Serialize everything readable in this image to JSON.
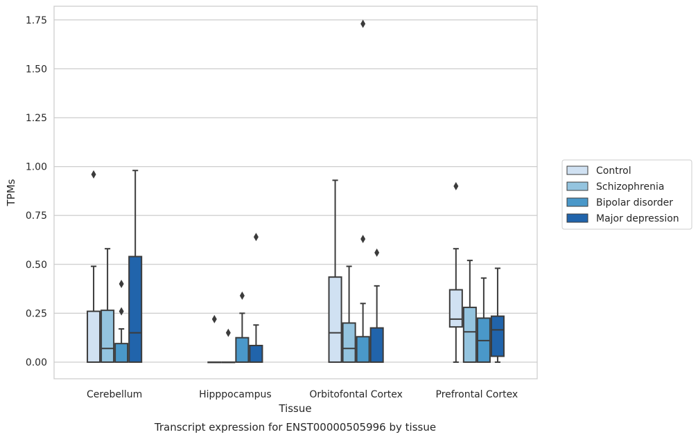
{
  "chart_data": {
    "type": "box",
    "caption": "Transcript expression for ENST00000505996 by tissue",
    "xlabel": "Tissue",
    "ylabel": "TPMs",
    "ylim": [
      -0.085,
      1.82
    ],
    "yticks": [
      0.0,
      0.25,
      0.5,
      0.75,
      1.0,
      1.25,
      1.5,
      1.75
    ],
    "ytick_labels": [
      "0.00",
      "0.25",
      "0.50",
      "0.75",
      "1.00",
      "1.25",
      "1.50",
      "1.75"
    ],
    "grid": "horizontal",
    "legend_position": "right",
    "categories": [
      "Cerebellum",
      "Hipppocampus",
      "Orbitofontal Cortex",
      "Prefrontal Cortex"
    ],
    "series": [
      {
        "name": "Control",
        "color": "#d0e1f2",
        "boxes": [
          {
            "whislo": 0.0,
            "q1": 0.0,
            "med": 0.0,
            "q3": 0.26,
            "whishi": 0.49,
            "fliers": [
              0.96
            ]
          },
          {
            "whislo": 0.0,
            "q1": 0.0,
            "med": 0.0,
            "q3": 0.0,
            "whishi": 0.0,
            "fliers": [
              0.22
            ]
          },
          {
            "whislo": 0.0,
            "q1": 0.0,
            "med": 0.15,
            "q3": 0.435,
            "whishi": 0.93,
            "fliers": []
          },
          {
            "whislo": 0.0,
            "q1": 0.18,
            "med": 0.22,
            "q3": 0.37,
            "whishi": 0.58,
            "fliers": [
              0.9
            ]
          }
        ]
      },
      {
        "name": "Schizophrenia",
        "color": "#94c4df",
        "boxes": [
          {
            "whislo": 0.0,
            "q1": 0.0,
            "med": 0.07,
            "q3": 0.265,
            "whishi": 0.58,
            "fliers": []
          },
          {
            "whislo": 0.0,
            "q1": 0.0,
            "med": 0.0,
            "q3": 0.0,
            "whishi": 0.0,
            "fliers": [
              0.15
            ]
          },
          {
            "whislo": 0.0,
            "q1": 0.0,
            "med": 0.07,
            "q3": 0.2,
            "whishi": 0.49,
            "fliers": []
          },
          {
            "whislo": 0.0,
            "q1": 0.0,
            "med": 0.155,
            "q3": 0.28,
            "whishi": 0.52,
            "fliers": []
          }
        ]
      },
      {
        "name": "Bipolar disorder",
        "color": "#4a98c9",
        "boxes": [
          {
            "whislo": 0.0,
            "q1": 0.0,
            "med": 0.0,
            "q3": 0.095,
            "whishi": 0.17,
            "fliers": [
              0.26,
              0.4
            ]
          },
          {
            "whislo": 0.0,
            "q1": 0.0,
            "med": 0.0,
            "q3": 0.125,
            "whishi": 0.25,
            "fliers": [
              0.34
            ]
          },
          {
            "whislo": 0.0,
            "q1": 0.0,
            "med": 0.0,
            "q3": 0.13,
            "whishi": 0.3,
            "fliers": [
              0.63,
              1.73
            ]
          },
          {
            "whislo": 0.0,
            "q1": 0.0,
            "med": 0.11,
            "q3": 0.225,
            "whishi": 0.43,
            "fliers": []
          }
        ]
      },
      {
        "name": "Major depression",
        "color": "#2164ab",
        "boxes": [
          {
            "whislo": 0.0,
            "q1": 0.0,
            "med": 0.15,
            "q3": 0.54,
            "whishi": 0.98,
            "fliers": []
          },
          {
            "whislo": 0.0,
            "q1": 0.0,
            "med": 0.0,
            "q3": 0.085,
            "whishi": 0.19,
            "fliers": [
              0.64
            ]
          },
          {
            "whislo": 0.0,
            "q1": 0.0,
            "med": 0.0,
            "q3": 0.175,
            "whishi": 0.39,
            "fliers": [
              0.56
            ]
          },
          {
            "whislo": 0.0,
            "q1": 0.03,
            "med": 0.165,
            "q3": 0.235,
            "whishi": 0.48,
            "fliers": []
          }
        ]
      }
    ]
  }
}
